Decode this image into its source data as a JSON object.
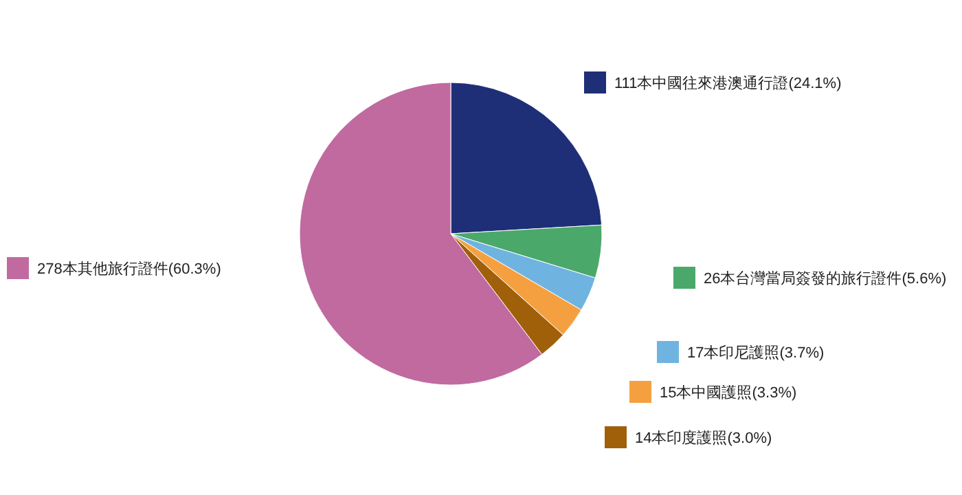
{
  "chart_data": {
    "type": "pie",
    "categories": [
      "111本中國往來港澳通行證(24.1%)",
      "26本台灣當局簽發的旅行證件(5.6%)",
      "17本印尼護照(3.7%)",
      "15本中國護照(3.3%)",
      "14本印度護照(3.0%)",
      "278本其他旅行證件(60.3%)"
    ],
    "values": [
      111,
      26,
      17,
      15,
      14,
      278
    ],
    "colors": [
      "#1e2f78",
      "#4aa86a",
      "#6fb4e0",
      "#f5a040",
      "#a0600a",
      "#c06aa0"
    ],
    "legend": "right"
  }
}
